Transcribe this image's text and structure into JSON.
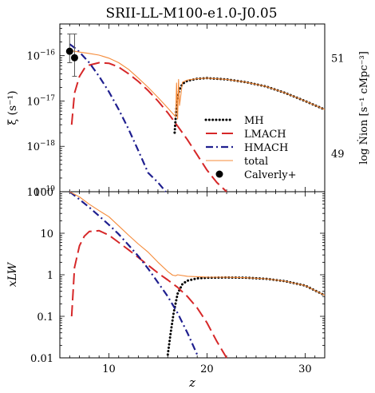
{
  "title": "SRII-LL-M100-e1.0-J0.05",
  "colors": {
    "MH": "#000000",
    "LMACH": "#d62728",
    "HMACH": "#1f1f8f",
    "total": "#f58b3a",
    "calverly": "#000000"
  },
  "chart_data": [
    {
      "type": "line",
      "panel": "top",
      "ylabel": "ξ (s⁻¹)",
      "ylabel_right": "log Ṅion [s⁻¹ cMpc⁻³]",
      "yscale": "log",
      "xlim": [
        5,
        32
      ],
      "ylim": [
        1e-19,
        5e-16
      ],
      "yticks": [
        {
          "v": 1e-16,
          "base": "10",
          "exp": "−16"
        },
        {
          "v": 1e-17,
          "base": "10",
          "exp": "−17"
        },
        {
          "v": 1e-18,
          "base": "10",
          "exp": "−18"
        },
        {
          "v": 1e-19,
          "base": "10",
          "exp": "−19"
        }
      ],
      "right_ticks": [
        {
          "v": "51",
          "y": 9e-17
        },
        {
          "v": "49",
          "y": 7e-19
        }
      ],
      "series": [
        {
          "name": "MH",
          "style": "dotted",
          "color": "#000000",
          "x": [
            16.7,
            16.8,
            16.9,
            17.0,
            17.2,
            17.5,
            18,
            19,
            20,
            22,
            24,
            26,
            28,
            30,
            32
          ],
          "y": [
            2e-18,
            4e-18,
            8e-18,
            1.2e-17,
            1.8e-17,
            2.4e-17,
            2.8e-17,
            3.1e-17,
            3.2e-17,
            3e-17,
            2.6e-17,
            2.1e-17,
            1.5e-17,
            1e-17,
            6.5e-18
          ]
        },
        {
          "name": "LMACH",
          "style": "dashed",
          "color": "#d62728",
          "x": [
            6.2,
            6.5,
            7,
            7.5,
            8,
            9,
            10,
            11,
            12,
            13,
            14,
            15,
            16,
            17,
            18,
            19,
            20,
            21,
            22
          ],
          "y": [
            3e-18,
            1.5e-17,
            3.5e-17,
            5.2e-17,
            6.2e-17,
            7e-17,
            6.8e-17,
            5.6e-17,
            4e-17,
            2.7e-17,
            1.7e-17,
            1e-17,
            5.5e-18,
            2.8e-18,
            1.4e-18,
            6.5e-19,
            3e-19,
            1.6e-19,
            1e-19
          ]
        },
        {
          "name": "HMACH",
          "style": "dashdot",
          "color": "#1f1f8f",
          "x": [
            6,
            6.5,
            7,
            8,
            9,
            10,
            11,
            12,
            13,
            14,
            15,
            15.8
          ],
          "y": [
            1.8e-16,
            1.5e-16,
            1.2e-16,
            7e-17,
            3.5e-17,
            1.6e-17,
            6.5e-18,
            2.4e-18,
            8e-19,
            2.6e-19,
            1.6e-19,
            1e-19
          ]
        },
        {
          "name": "total",
          "style": "solid",
          "color": "#f58b3a",
          "x": [
            6,
            7,
            8,
            9,
            10,
            11,
            12,
            13,
            14,
            15,
            16,
            16.8,
            16.9,
            17.0,
            17.1,
            17.2,
            17.5,
            18,
            19,
            20,
            22,
            24,
            26,
            28,
            30,
            32
          ],
          "y": [
            1.3e-16,
            1.2e-16,
            1.12e-16,
            1.03e-16,
            8.8e-17,
            7e-17,
            5e-17,
            3.2e-17,
            2e-17,
            1.2e-17,
            7e-18,
            4.5e-18,
            2.5e-17,
            4e-18,
            3e-17,
            8e-18,
            2.6e-17,
            2.9e-17,
            3.1e-17,
            3.2e-17,
            3e-17,
            2.6e-17,
            2.1e-17,
            1.5e-17,
            1e-17,
            6.5e-18
          ]
        },
        {
          "name": "Calverly+",
          "style": "points",
          "color": "#000000",
          "x": [
            6.0,
            6.5
          ],
          "y": [
            1.25e-16,
            9e-17
          ],
          "ylow": [
            7e-17,
            3.5e-17
          ],
          "yhigh": [
            3e-16,
            3e-16
          ]
        }
      ],
      "legend": [
        {
          "label": "MH",
          "key": "MH"
        },
        {
          "label": "LMACH",
          "key": "LMACH"
        },
        {
          "label": "HMACH",
          "key": "HMACH"
        },
        {
          "label": "total",
          "key": "total"
        },
        {
          "label": "Calverly+",
          "key": "calverly"
        }
      ]
    },
    {
      "type": "line",
      "panel": "bottom",
      "xlabel": "z",
      "ylabel": "xLW",
      "yscale": "log",
      "xlim": [
        5,
        32
      ],
      "ylim": [
        0.01,
        100
      ],
      "xticks": [
        10,
        20,
        30
      ],
      "yticks": [
        {
          "v": 100,
          "label": "100"
        },
        {
          "v": 10,
          "label": "10"
        },
        {
          "v": 1,
          "label": "1"
        },
        {
          "v": 0.1,
          "label": "0.1"
        },
        {
          "v": 0.01,
          "label": "0.01"
        }
      ],
      "series": [
        {
          "name": "MH",
          "style": "dotted",
          "color": "#000000",
          "x": [
            16,
            16.3,
            16.6,
            17,
            17.5,
            18,
            19,
            20,
            22,
            24,
            26,
            28,
            30,
            32
          ],
          "y": [
            0.012,
            0.04,
            0.12,
            0.35,
            0.6,
            0.72,
            0.82,
            0.85,
            0.86,
            0.85,
            0.8,
            0.7,
            0.55,
            0.32
          ]
        },
        {
          "name": "LMACH",
          "style": "dashed",
          "color": "#d62728",
          "x": [
            6.2,
            6.5,
            7,
            7.5,
            8,
            9,
            10,
            11,
            12,
            13,
            14,
            15,
            16,
            17,
            18,
            19,
            20,
            21,
            22
          ],
          "y": [
            0.1,
            1.5,
            5,
            8.5,
            11,
            11.5,
            9,
            6,
            4,
            2.6,
            1.7,
            1.1,
            0.75,
            0.5,
            0.3,
            0.16,
            0.07,
            0.025,
            0.01
          ]
        },
        {
          "name": "HMACH",
          "style": "dashdot",
          "color": "#1f1f8f",
          "x": [
            6,
            7,
            8,
            9,
            10,
            11,
            12,
            13,
            14,
            15,
            16,
            17,
            18,
            19
          ],
          "y": [
            100,
            65,
            42,
            26,
            16,
            9.5,
            5.2,
            2.8,
            1.4,
            0.65,
            0.3,
            0.12,
            0.04,
            0.012
          ]
        },
        {
          "name": "total",
          "style": "solid",
          "color": "#f58b3a",
          "x": [
            6,
            7,
            8,
            9,
            10,
            11,
            12,
            13,
            14,
            15,
            16,
            16.5,
            16.8,
            17,
            18,
            20,
            22,
            24,
            26,
            28,
            30,
            32
          ],
          "y": [
            100,
            75,
            50,
            35,
            25,
            15,
            9,
            5.5,
            3.5,
            2,
            1.2,
            0.98,
            0.95,
            1.0,
            0.92,
            0.88,
            0.87,
            0.85,
            0.8,
            0.7,
            0.55,
            0.32
          ]
        }
      ]
    }
  ]
}
